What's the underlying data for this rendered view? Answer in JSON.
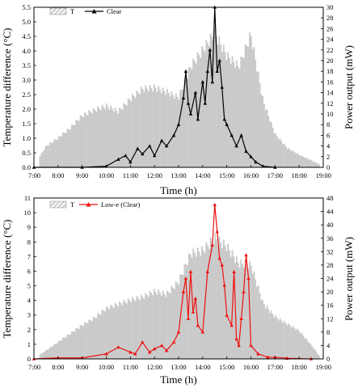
{
  "chart_data": [
    {
      "type": "bar",
      "title": "",
      "xlabel": "Time (h)",
      "ylabel": "Temperature difference (°C)",
      "y2label": "Power output (mW)",
      "xticks": [
        "7:00",
        "8:00",
        "9:00",
        "10:00",
        "11:00",
        "12:00",
        "13:00",
        "14:00",
        "15:00",
        "16:00",
        "17:00",
        "18:00",
        "19:00"
      ],
      "x_range_hours": [
        7,
        19
      ],
      "ylim": [
        0,
        5.5
      ],
      "yticks": [
        "0.0",
        "0.5",
        "1.0",
        "1.5",
        "2.0",
        "2.5",
        "3.0",
        "3.5",
        "4.0",
        "4.5",
        "5.0",
        "5.5"
      ],
      "y2lim": [
        0,
        30
      ],
      "y2ticks": [
        "0",
        "2",
        "4",
        "6",
        "8",
        "10",
        "12",
        "14",
        "16",
        "18",
        "20",
        "22",
        "24",
        "26",
        "28",
        "30"
      ],
      "legend_position": "top-left",
      "series": [
        {
          "name": "T",
          "kind": "bar",
          "axis": "left",
          "color": "#c8c8c8",
          "x": [
            7.25,
            7.5,
            8.0,
            8.5,
            9.0,
            9.5,
            10.0,
            10.5,
            11.0,
            11.5,
            12.0,
            12.5,
            13.0,
            13.5,
            14.0,
            14.5,
            15.0,
            15.5,
            16.0,
            16.5,
            17.0,
            17.5,
            18.0,
            18.5,
            18.85
          ],
          "values": [
            0.4,
            0.75,
            1.05,
            1.4,
            1.85,
            2.05,
            2.2,
            2.0,
            2.45,
            2.8,
            2.85,
            2.7,
            2.5,
            3.6,
            4.2,
            4.8,
            4.0,
            3.6,
            4.75,
            2.4,
            1.2,
            0.7,
            0.45,
            0.25,
            0.1
          ]
        },
        {
          "name": "Clear",
          "kind": "line",
          "axis": "right",
          "color": "#000000",
          "x": [
            7.0,
            9.0,
            10.0,
            10.5,
            10.8,
            11.0,
            11.3,
            11.5,
            11.8,
            12.0,
            12.3,
            12.5,
            12.8,
            13.0,
            13.2,
            13.3,
            13.4,
            13.5,
            13.7,
            13.8,
            14.0,
            14.1,
            14.2,
            14.3,
            14.4,
            14.5,
            14.6,
            14.7,
            14.8,
            14.9,
            15.0,
            15.2,
            15.4,
            15.6,
            15.8,
            16.0,
            16.2,
            16.5,
            17.0
          ],
          "values": [
            0,
            0,
            0.2,
            1.5,
            2.2,
            1.0,
            3.5,
            2.5,
            4.0,
            2.2,
            5.0,
            4.0,
            6.0,
            8.0,
            13.0,
            18.0,
            12.0,
            10.0,
            14.0,
            9.0,
            16.0,
            12.0,
            18.0,
            22.0,
            16.0,
            30.0,
            18.0,
            20.0,
            15.0,
            9.0,
            8.0,
            6.0,
            4.0,
            6.0,
            3.0,
            2.0,
            1.0,
            0.2,
            0
          ]
        }
      ]
    },
    {
      "type": "bar",
      "title": "",
      "xlabel": "Time (h)",
      "ylabel": "Temperature difference (°C)",
      "y2label": "Power output (mW)",
      "xticks": [
        "7:00",
        "8:00",
        "9:00",
        "10:00",
        "11:00",
        "12:00",
        "13:00",
        "14:00",
        "15:00",
        "16:00",
        "17:00",
        "18:00",
        "19:00"
      ],
      "x_range_hours": [
        7,
        19
      ],
      "ylim": [
        0,
        11
      ],
      "yticks": [
        "0",
        "1",
        "2",
        "3",
        "4",
        "5",
        "6",
        "7",
        "8",
        "9",
        "10",
        "11"
      ],
      "y2lim": [
        0,
        48
      ],
      "y2ticks": [
        "0",
        "4",
        "8",
        "12",
        "16",
        "20",
        "24",
        "28",
        "32",
        "36",
        "40",
        "44",
        "48"
      ],
      "legend_position": "top-left",
      "series": [
        {
          "name": "T",
          "kind": "bar",
          "axis": "left",
          "color": "#c8c8c8",
          "x": [
            7.25,
            7.5,
            8.0,
            8.5,
            9.0,
            9.5,
            10.0,
            10.5,
            11.0,
            11.5,
            12.0,
            12.5,
            13.0,
            13.5,
            14.0,
            14.5,
            15.0,
            15.5,
            16.0,
            16.5,
            17.0,
            17.5,
            18.0,
            18.5,
            18.85
          ],
          "values": [
            0.3,
            0.6,
            1.2,
            1.8,
            2.4,
            2.9,
            3.6,
            3.9,
            4.2,
            4.4,
            4.8,
            4.6,
            5.5,
            7.5,
            7.7,
            8.6,
            8.0,
            6.8,
            6.7,
            4.0,
            3.0,
            2.5,
            2.0,
            1.0,
            0.2
          ]
        },
        {
          "name": "Low-e (Clear)",
          "kind": "line",
          "axis": "right",
          "color": "#ee1111",
          "x": [
            7.0,
            8.0,
            9.0,
            10.0,
            10.5,
            11.0,
            11.2,
            11.5,
            11.8,
            12.0,
            12.3,
            12.5,
            12.8,
            13.0,
            13.2,
            13.3,
            13.4,
            13.5,
            13.6,
            13.7,
            13.8,
            14.0,
            14.2,
            14.4,
            14.5,
            14.6,
            14.7,
            14.8,
            14.9,
            15.0,
            15.2,
            15.3,
            15.4,
            15.5,
            15.6,
            15.7,
            15.8,
            15.9,
            16.0,
            16.3,
            16.7,
            17.0,
            17.5,
            18.5
          ],
          "values": [
            0,
            0.3,
            0.3,
            1.5,
            3.5,
            2.0,
            1.5,
            5.0,
            2.0,
            3.0,
            4.0,
            2.5,
            5.0,
            8.0,
            20.0,
            24.0,
            12.0,
            26.0,
            14.0,
            18.0,
            10.0,
            8.0,
            26.0,
            34.0,
            46.0,
            38.0,
            30.0,
            28.0,
            22.0,
            13.0,
            10.0,
            26.0,
            6.0,
            4.0,
            12.0,
            20.0,
            31.0,
            24.0,
            4.0,
            1.5,
            0.5,
            0.5,
            0.2,
            0
          ]
        }
      ]
    }
  ]
}
